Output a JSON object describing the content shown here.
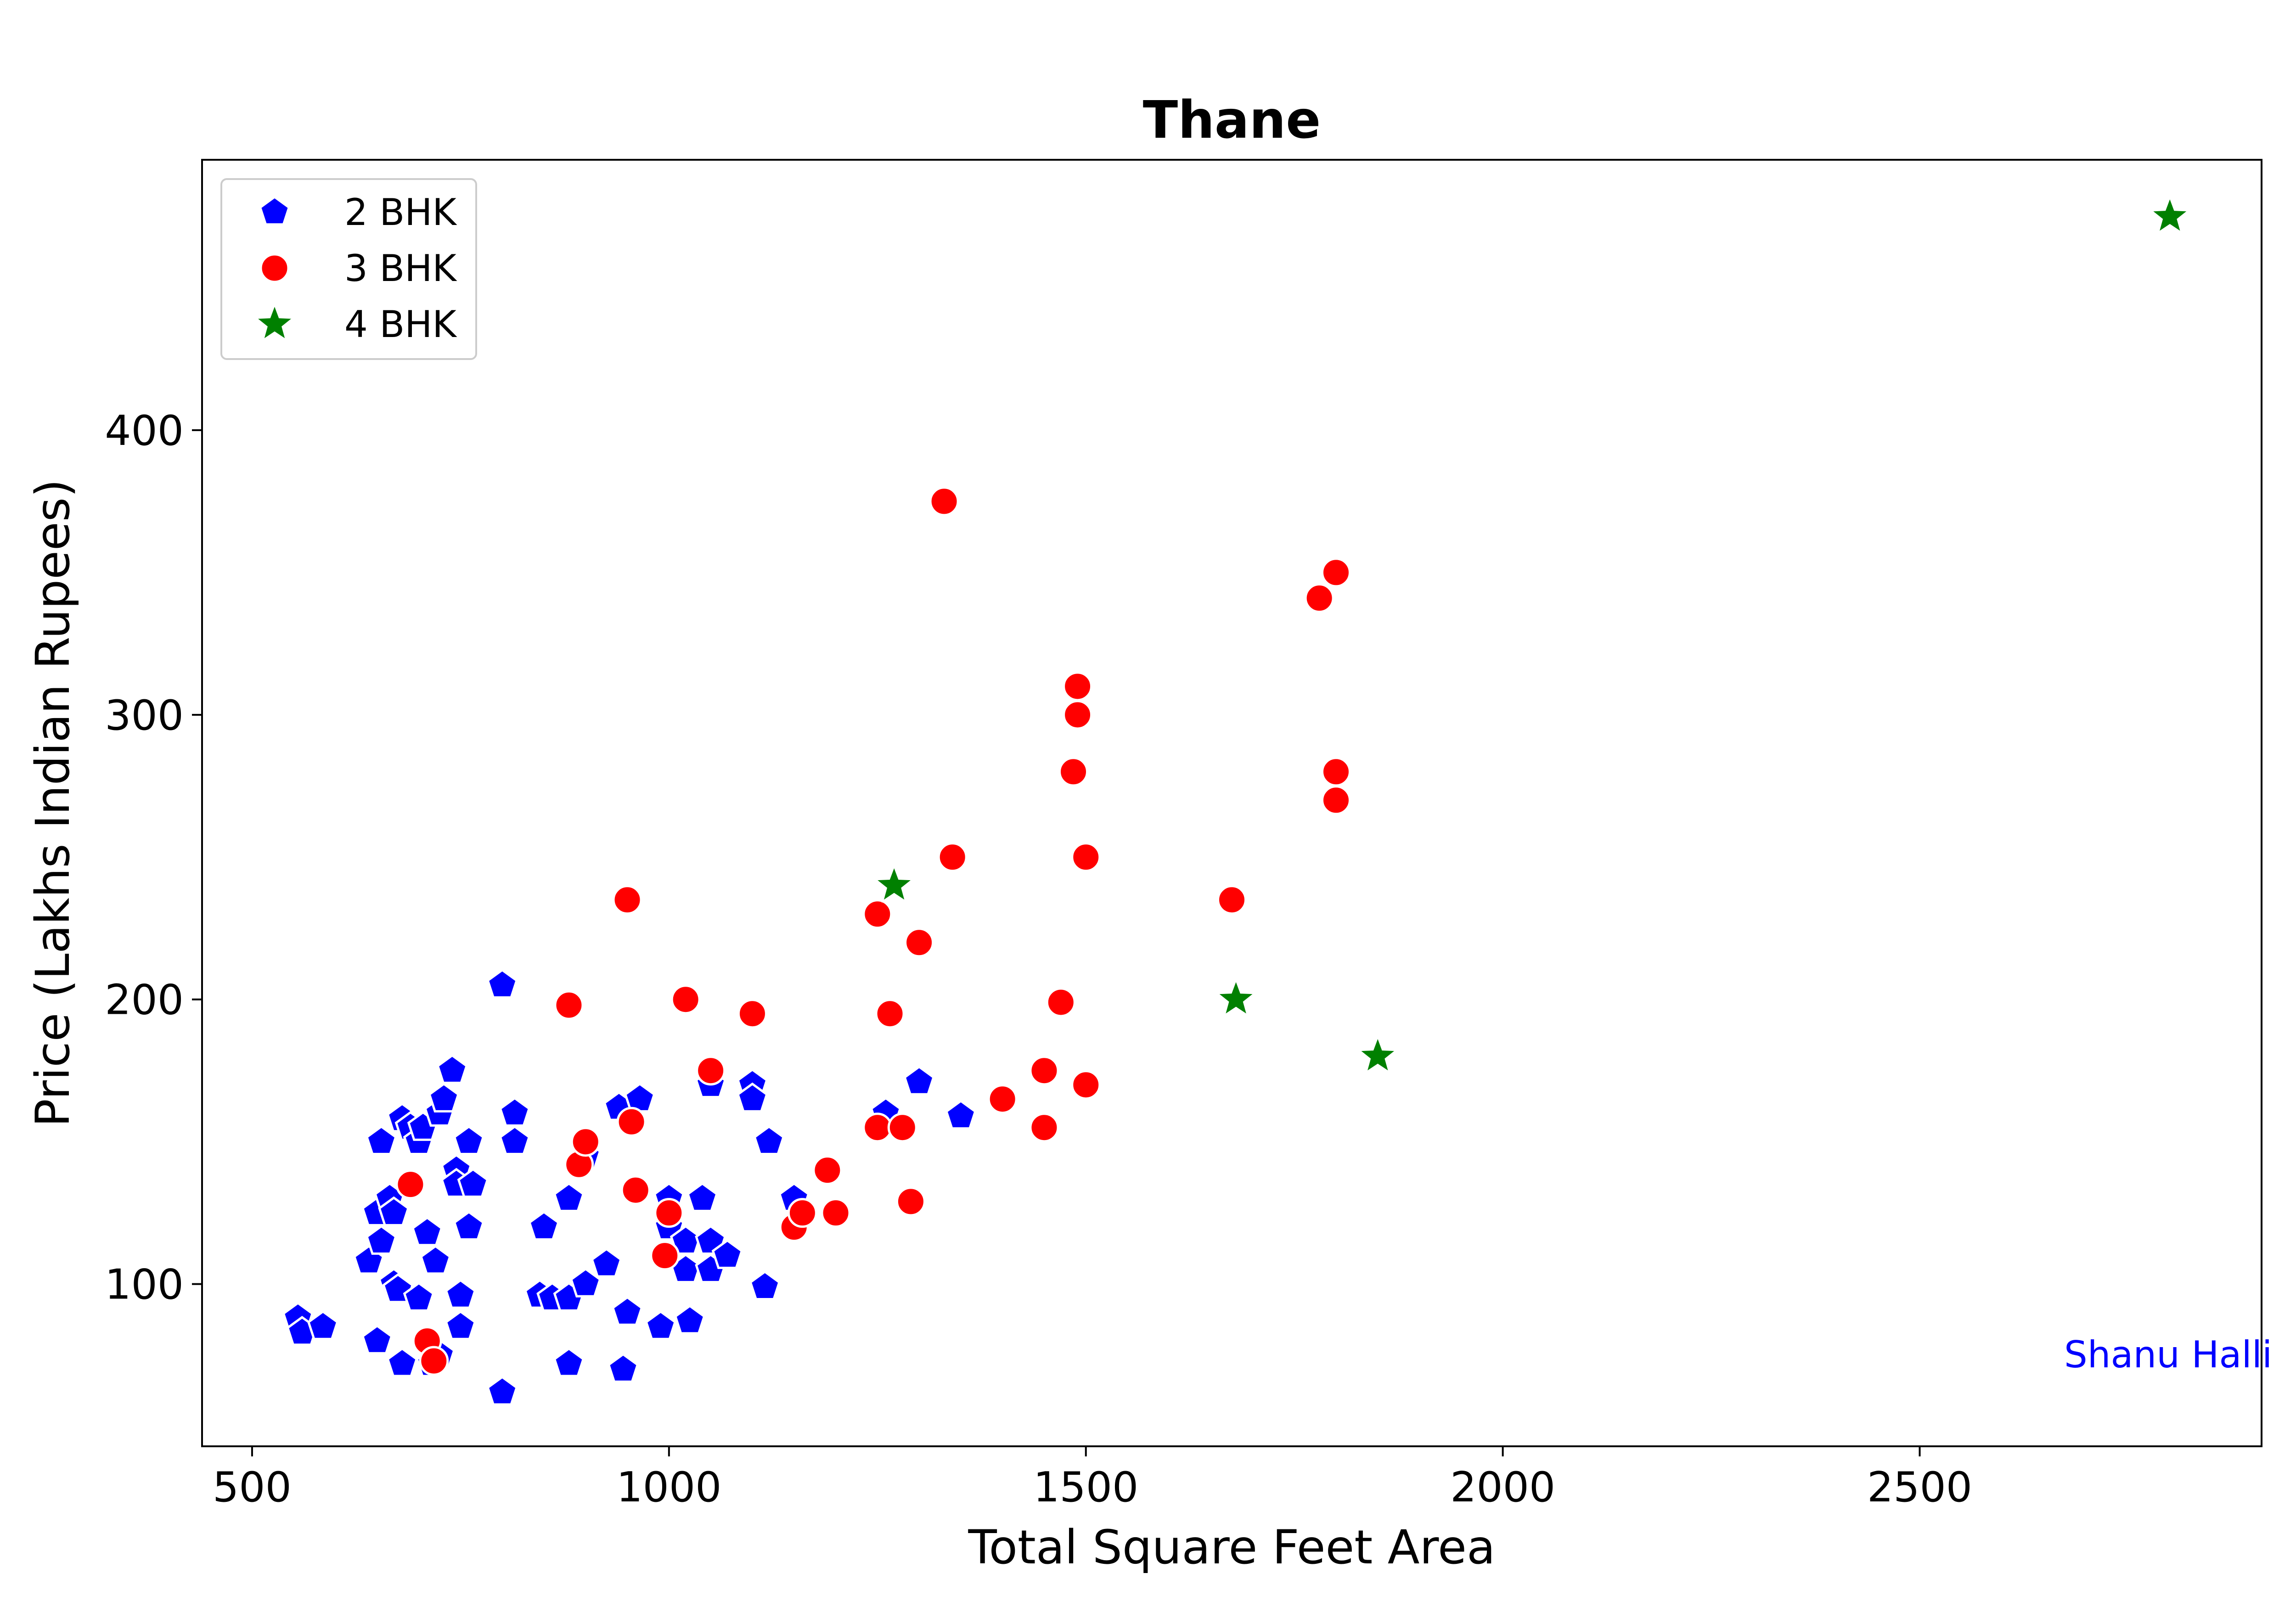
{
  "chart_data": {
    "type": "scatter",
    "title": "Thane",
    "xlabel": "Total Square Feet Area",
    "ylabel": "Price (Lakhs Indian Rupees)",
    "xlim": [
      440,
      2910
    ],
    "ylim": [
      43,
      495
    ],
    "xticks": [
      500,
      1000,
      1500,
      2000,
      2500
    ],
    "yticks": [
      100,
      200,
      300,
      400
    ],
    "grid": false,
    "legend_position": "top-left",
    "watermark": "Shanu Halli",
    "series": [
      {
        "name": "2 BHK",
        "marker": "pentagon",
        "color": "#0000ff",
        "points": [
          [
            555,
            88
          ],
          [
            560,
            83
          ],
          [
            585,
            85
          ],
          [
            640,
            108
          ],
          [
            650,
            125
          ],
          [
            655,
            115
          ],
          [
            650,
            80
          ],
          [
            655,
            150
          ],
          [
            665,
            130
          ],
          [
            670,
            125
          ],
          [
            670,
            100
          ],
          [
            675,
            98
          ],
          [
            680,
            72
          ],
          [
            680,
            158
          ],
          [
            690,
            155
          ],
          [
            700,
            95
          ],
          [
            700,
            150
          ],
          [
            705,
            155
          ],
          [
            710,
            118
          ],
          [
            715,
            72
          ],
          [
            720,
            108
          ],
          [
            725,
            75
          ],
          [
            725,
            160
          ],
          [
            730,
            165
          ],
          [
            740,
            175
          ],
          [
            745,
            140
          ],
          [
            745,
            135
          ],
          [
            750,
            85
          ],
          [
            750,
            96
          ],
          [
            760,
            120
          ],
          [
            760,
            150
          ],
          [
            765,
            135
          ],
          [
            800,
            205
          ],
          [
            800,
            62
          ],
          [
            815,
            160
          ],
          [
            815,
            150
          ],
          [
            850,
            120
          ],
          [
            845,
            96
          ],
          [
            860,
            95
          ],
          [
            880,
            130
          ],
          [
            880,
            95
          ],
          [
            880,
            72
          ],
          [
            900,
            100
          ],
          [
            900,
            145
          ],
          [
            925,
            107
          ],
          [
            940,
            162
          ],
          [
            945,
            70
          ],
          [
            950,
            90
          ],
          [
            965,
            165
          ],
          [
            990,
            85
          ],
          [
            1000,
            130
          ],
          [
            1000,
            120
          ],
          [
            1020,
            115
          ],
          [
            1020,
            105
          ],
          [
            1025,
            87
          ],
          [
            1040,
            130
          ],
          [
            1050,
            115
          ],
          [
            1050,
            105
          ],
          [
            1050,
            170
          ],
          [
            1070,
            110
          ],
          [
            1100,
            170
          ],
          [
            1100,
            165
          ],
          [
            1115,
            99
          ],
          [
            1120,
            150
          ],
          [
            1150,
            130
          ],
          [
            1190,
            140
          ],
          [
            1260,
            160
          ],
          [
            1300,
            171
          ],
          [
            1350,
            159
          ]
        ]
      },
      {
        "name": "3 BHK",
        "marker": "circle",
        "color": "#ff0000",
        "points": [
          [
            690,
            135
          ],
          [
            710,
            80
          ],
          [
            718,
            73
          ],
          [
            880,
            198
          ],
          [
            892,
            142
          ],
          [
            900,
            150
          ],
          [
            950,
            235
          ],
          [
            955,
            157
          ],
          [
            960,
            133
          ],
          [
            995,
            110
          ],
          [
            1000,
            125
          ],
          [
            1020,
            200
          ],
          [
            1050,
            175
          ],
          [
            1100,
            195
          ],
          [
            1150,
            120
          ],
          [
            1160,
            125
          ],
          [
            1190,
            140
          ],
          [
            1200,
            125
          ],
          [
            1250,
            230
          ],
          [
            1250,
            155
          ],
          [
            1265,
            195
          ],
          [
            1280,
            155
          ],
          [
            1290,
            129
          ],
          [
            1300,
            220
          ],
          [
            1330,
            375
          ],
          [
            1340,
            250
          ],
          [
            1400,
            165
          ],
          [
            1450,
            175
          ],
          [
            1450,
            155
          ],
          [
            1470,
            199
          ],
          [
            1485,
            280
          ],
          [
            1490,
            300
          ],
          [
            1490,
            310
          ],
          [
            1500,
            250
          ],
          [
            1500,
            170
          ],
          [
            1675,
            235
          ],
          [
            1780,
            341
          ],
          [
            1800,
            350
          ],
          [
            1800,
            280
          ],
          [
            1800,
            270
          ]
        ]
      },
      {
        "name": "4 BHK",
        "marker": "star",
        "color": "#008000",
        "points": [
          [
            1270,
            240
          ],
          [
            1680,
            200
          ],
          [
            1850,
            180
          ],
          [
            2800,
            475
          ]
        ]
      }
    ]
  }
}
